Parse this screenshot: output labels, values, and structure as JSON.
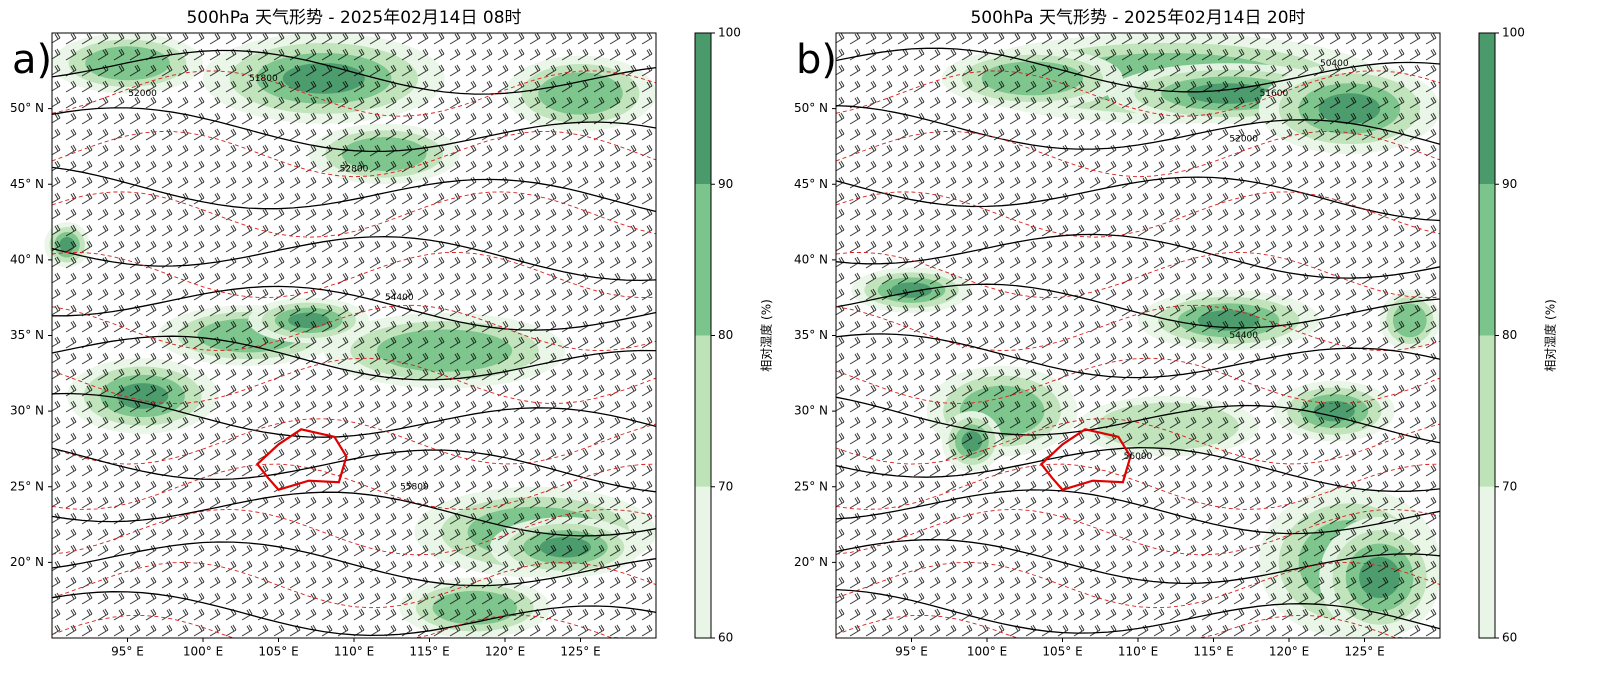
{
  "panels": [
    {
      "label": "a)",
      "title": "500hPa 天气形势 - 2025年02月14日 08时",
      "xlim": [
        90,
        130
      ],
      "ylim": [
        15,
        55
      ],
      "xticks": [
        {
          "value": 95,
          "label": "95° E"
        },
        {
          "value": 100,
          "label": "100° E"
        },
        {
          "value": 105,
          "label": "105° E"
        },
        {
          "value": 110,
          "label": "110° E"
        },
        {
          "value": 115,
          "label": "115° E"
        },
        {
          "value": 120,
          "label": "120° E"
        },
        {
          "value": 125,
          "label": "125° E"
        }
      ],
      "yticks": [
        {
          "value": 20,
          "label": "20° N"
        },
        {
          "value": 25,
          "label": "25° N"
        },
        {
          "value": 30,
          "label": "30° N"
        },
        {
          "value": 35,
          "label": "35° N"
        },
        {
          "value": 40,
          "label": "40° N"
        },
        {
          "value": 45,
          "label": "45° N"
        },
        {
          "value": 50,
          "label": "50° N"
        }
      ],
      "contour_labels": [
        "51800",
        "52000",
        "52800",
        "54400",
        "55800"
      ]
    },
    {
      "label": "b)",
      "title": "500hPa 天气形势 - 2025年02月14日 20时",
      "xlim": [
        90,
        130
      ],
      "ylim": [
        15,
        55
      ],
      "xticks": [
        {
          "value": 95,
          "label": "95° E"
        },
        {
          "value": 100,
          "label": "100° E"
        },
        {
          "value": 105,
          "label": "105° E"
        },
        {
          "value": 110,
          "label": "110° E"
        },
        {
          "value": 115,
          "label": "115° E"
        },
        {
          "value": 120,
          "label": "120° E"
        },
        {
          "value": 125,
          "label": "125° E"
        }
      ],
      "yticks": [
        {
          "value": 20,
          "label": "20° N"
        },
        {
          "value": 25,
          "label": "25° N"
        },
        {
          "value": 30,
          "label": "30° N"
        },
        {
          "value": 35,
          "label": "35° N"
        },
        {
          "value": 40,
          "label": "40° N"
        },
        {
          "value": 45,
          "label": "45° N"
        },
        {
          "value": 50,
          "label": "50° N"
        }
      ],
      "contour_labels": [
        "50400",
        "51600",
        "52000",
        "54400",
        "56000"
      ]
    }
  ],
  "colorbar": {
    "label": "相对湿度 (%)",
    "lim": [
      60,
      100
    ],
    "ticks": [
      60,
      70,
      80,
      90,
      100
    ],
    "colors": [
      "#e9f5e6",
      "#bfe3b9",
      "#7bc48b",
      "#4b9a6b"
    ]
  }
}
